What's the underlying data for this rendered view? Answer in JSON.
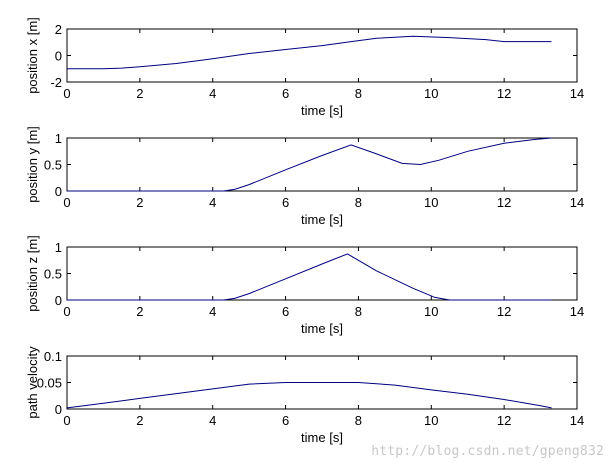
{
  "chart_data": [
    {
      "type": "line",
      "xlabel": "time [s]",
      "ylabel": "position x [m]",
      "xlim": [
        0,
        14
      ],
      "ylim": [
        -2,
        2
      ],
      "xticks": [
        "0",
        "2",
        "4",
        "6",
        "8",
        "10",
        "12",
        "14"
      ],
      "yticks": [
        "-2",
        "0",
        "2"
      ],
      "grid": false,
      "color": "#000080",
      "x": [
        0,
        1.0,
        1.5,
        2,
        3,
        4,
        5,
        6,
        7,
        7.8,
        8.5,
        9.5,
        10.5,
        11.5,
        12.0,
        13.3
      ],
      "y": [
        -1.0,
        -1.0,
        -0.95,
        -0.85,
        -0.6,
        -0.25,
        0.15,
        0.45,
        0.75,
        1.05,
        1.3,
        1.45,
        1.35,
        1.2,
        1.05,
        1.05
      ]
    },
    {
      "type": "line",
      "xlabel": "time [s]",
      "ylabel": "position y [m]",
      "xlim": [
        0,
        14
      ],
      "ylim": [
        0,
        1
      ],
      "xticks": [
        "0",
        "2",
        "4",
        "6",
        "8",
        "10",
        "12",
        "14"
      ],
      "yticks": [
        "0",
        "0.5",
        "1"
      ],
      "grid": false,
      "color": "#000080",
      "x": [
        0,
        4.3,
        4.6,
        5.0,
        6.0,
        7.0,
        7.8,
        8.5,
        9.2,
        9.7,
        10.2,
        11.0,
        12.0,
        12.8,
        13.3
      ],
      "y": [
        0,
        0,
        0.03,
        0.12,
        0.4,
        0.67,
        0.87,
        0.7,
        0.52,
        0.5,
        0.58,
        0.75,
        0.9,
        0.97,
        1.0
      ]
    },
    {
      "type": "line",
      "xlabel": "time [s]",
      "ylabel": "position z [m]",
      "xlim": [
        0,
        14
      ],
      "ylim": [
        0,
        1
      ],
      "xticks": [
        "0",
        "2",
        "4",
        "6",
        "8",
        "10",
        "12",
        "14"
      ],
      "yticks": [
        "0",
        "0.5",
        "1"
      ],
      "grid": false,
      "color": "#000080",
      "x": [
        0,
        4.3,
        4.6,
        5.0,
        6.0,
        7.0,
        7.7,
        8.5,
        9.5,
        10.1,
        10.5,
        11.0,
        13.3
      ],
      "y": [
        0,
        0,
        0.03,
        0.12,
        0.4,
        0.68,
        0.87,
        0.55,
        0.22,
        0.05,
        0.0,
        0.0,
        0.0
      ]
    },
    {
      "type": "line",
      "xlabel": "time [s]",
      "ylabel": "path velocity",
      "xlim": [
        0,
        14
      ],
      "ylim": [
        0,
        0.1
      ],
      "xticks": [
        "0",
        "2",
        "4",
        "6",
        "8",
        "10",
        "12",
        "14"
      ],
      "yticks": [
        "0",
        "0.05",
        "0.1"
      ],
      "grid": false,
      "color": "#000080",
      "x": [
        0,
        1,
        2,
        3,
        4,
        5,
        6,
        7,
        8,
        9,
        10,
        11,
        12,
        13,
        13.3
      ],
      "y": [
        0.002,
        0.011,
        0.02,
        0.029,
        0.038,
        0.047,
        0.05,
        0.05,
        0.05,
        0.045,
        0.036,
        0.028,
        0.018,
        0.006,
        0.002
      ]
    }
  ],
  "watermark": "http://blog.csdn.net/gpeng832"
}
